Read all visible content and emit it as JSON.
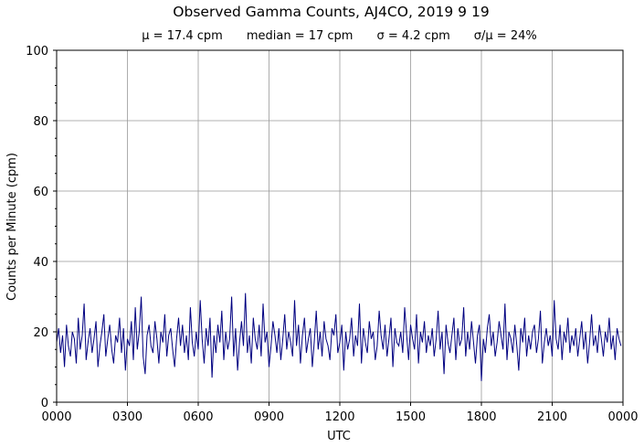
{
  "chart_data": {
    "type": "line",
    "title": "Observed Gamma Counts, AJ4CO, 2019 9 19",
    "stats": [
      "μ = 17.4 cpm",
      "median = 17 cpm",
      "σ = 4.2 cpm",
      "σ/μ = 24%"
    ],
    "xlabel": "UTC",
    "ylabel": "Counts per Minute (cpm)",
    "xlim": [
      0,
      1440
    ],
    "ylim": [
      0,
      100
    ],
    "grid": true,
    "line_color": "#000080",
    "x_ticks": [
      {
        "value": 0,
        "label": "0000"
      },
      {
        "value": 180,
        "label": "0300"
      },
      {
        "value": 360,
        "label": "0600"
      },
      {
        "value": 540,
        "label": "0900"
      },
      {
        "value": 720,
        "label": "1200"
      },
      {
        "value": 900,
        "label": "1500"
      },
      {
        "value": 1080,
        "label": "1800"
      },
      {
        "value": 1260,
        "label": "2100"
      },
      {
        "value": 1440,
        "label": "0000"
      }
    ],
    "y_ticks": [
      {
        "value": 0,
        "label": "0"
      },
      {
        "value": 20,
        "label": "20"
      },
      {
        "value": 40,
        "label": "40"
      },
      {
        "value": 60,
        "label": "60"
      },
      {
        "value": 80,
        "label": "80"
      },
      {
        "value": 100,
        "label": "100"
      }
    ],
    "x_step_minutes": 5,
    "series": [
      {
        "name": "cpm",
        "values": [
          17,
          21,
          14,
          19,
          10,
          22,
          16,
          13,
          20,
          18,
          11,
          24,
          15,
          19,
          28,
          12,
          17,
          21,
          14,
          18,
          23,
          10,
          16,
          20,
          25,
          13,
          18,
          22,
          15,
          11,
          19,
          17,
          24,
          14,
          21,
          9,
          18,
          16,
          23,
          12,
          27,
          15,
          20,
          30,
          13,
          8,
          19,
          22,
          16,
          14,
          23,
          18,
          11,
          20,
          17,
          25,
          13,
          19,
          21,
          15,
          10,
          18,
          24,
          16,
          22,
          14,
          19,
          12,
          27,
          17,
          13,
          20,
          15,
          29,
          18,
          11,
          21,
          16,
          24,
          7,
          19,
          14,
          22,
          17,
          26,
          12,
          20,
          15,
          18,
          30,
          13,
          21,
          9,
          17,
          23,
          16,
          31,
          14,
          19,
          11,
          24,
          18,
          15,
          22,
          13,
          28,
          17,
          20,
          10,
          16,
          23,
          19,
          14,
          21,
          12,
          18,
          25,
          15,
          20,
          17,
          13,
          29,
          16,
          22,
          11,
          19,
          24,
          14,
          18,
          21,
          10,
          17,
          26,
          15,
          20,
          13,
          23,
          18,
          16,
          12,
          21,
          19,
          25,
          14,
          17,
          22,
          9,
          20,
          15,
          18,
          24,
          13,
          19,
          16,
          28,
          11,
          21,
          17,
          14,
          23,
          18,
          20,
          12,
          16,
          26,
          19,
          15,
          22,
          13,
          18,
          24,
          10,
          21,
          17,
          16,
          20,
          14,
          27,
          19,
          12,
          22,
          18,
          15,
          25,
          11,
          20,
          17,
          23,
          14,
          19,
          16,
          21,
          13,
          18,
          26,
          15,
          20,
          8,
          22,
          17,
          14,
          19,
          24,
          12,
          21,
          16,
          18,
          27,
          13,
          20,
          15,
          23,
          17,
          11,
          19,
          22,
          6,
          18,
          14,
          21,
          25,
          16,
          20,
          13,
          17,
          23,
          19,
          15,
          28,
          12,
          20,
          18,
          14,
          22,
          16,
          9,
          21,
          17,
          24,
          13,
          19,
          15,
          20,
          22,
          14,
          18,
          26,
          11,
          17,
          21,
          16,
          19,
          13,
          29,
          18,
          15,
          22,
          12,
          20,
          17,
          24,
          14,
          19,
          16,
          21,
          13,
          18,
          23,
          15,
          20,
          11,
          17,
          25,
          16,
          19,
          14,
          22,
          18,
          13,
          20,
          17,
          24,
          15,
          19,
          12,
          21,
          18,
          16
        ]
      }
    ]
  }
}
